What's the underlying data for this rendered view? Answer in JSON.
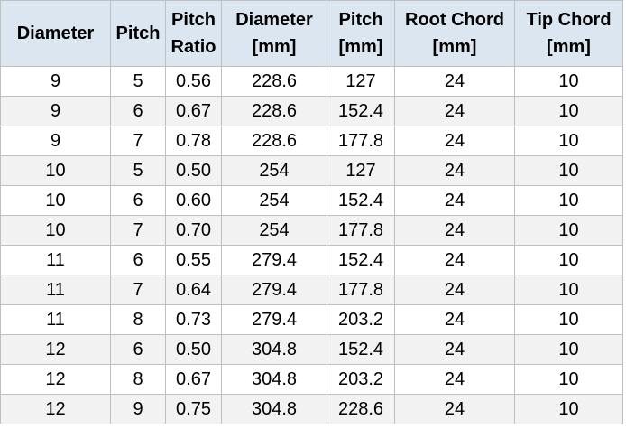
{
  "table": {
    "header": [
      "Diameter",
      "Pitch",
      "Pitch Ratio",
      "Diameter [mm]",
      "Pitch [mm]",
      "Root Chord [mm]",
      "Tip Chord [mm]"
    ],
    "rows": [
      [
        "9",
        "5",
        "0.56",
        "228.6",
        "127",
        "24",
        "10"
      ],
      [
        "9",
        "6",
        "0.67",
        "228.6",
        "152.4",
        "24",
        "10"
      ],
      [
        "9",
        "7",
        "0.78",
        "228.6",
        "177.8",
        "24",
        "10"
      ],
      [
        "10",
        "5",
        "0.50",
        "254",
        "127",
        "24",
        "10"
      ],
      [
        "10",
        "6",
        "0.60",
        "254",
        "152.4",
        "24",
        "10"
      ],
      [
        "10",
        "7",
        "0.70",
        "254",
        "177.8",
        "24",
        "10"
      ],
      [
        "11",
        "6",
        "0.55",
        "279.4",
        "152.4",
        "24",
        "10"
      ],
      [
        "11",
        "7",
        "0.64",
        "279.4",
        "177.8",
        "24",
        "10"
      ],
      [
        "11",
        "8",
        "0.73",
        "279.4",
        "203.2",
        "24",
        "10"
      ],
      [
        "12",
        "6",
        "0.50",
        "304.8",
        "152.4",
        "24",
        "10"
      ],
      [
        "12",
        "8",
        "0.67",
        "304.8",
        "203.2",
        "24",
        "10"
      ],
      [
        "12",
        "9",
        "0.75",
        "304.8",
        "228.6",
        "24",
        "10"
      ]
    ]
  }
}
